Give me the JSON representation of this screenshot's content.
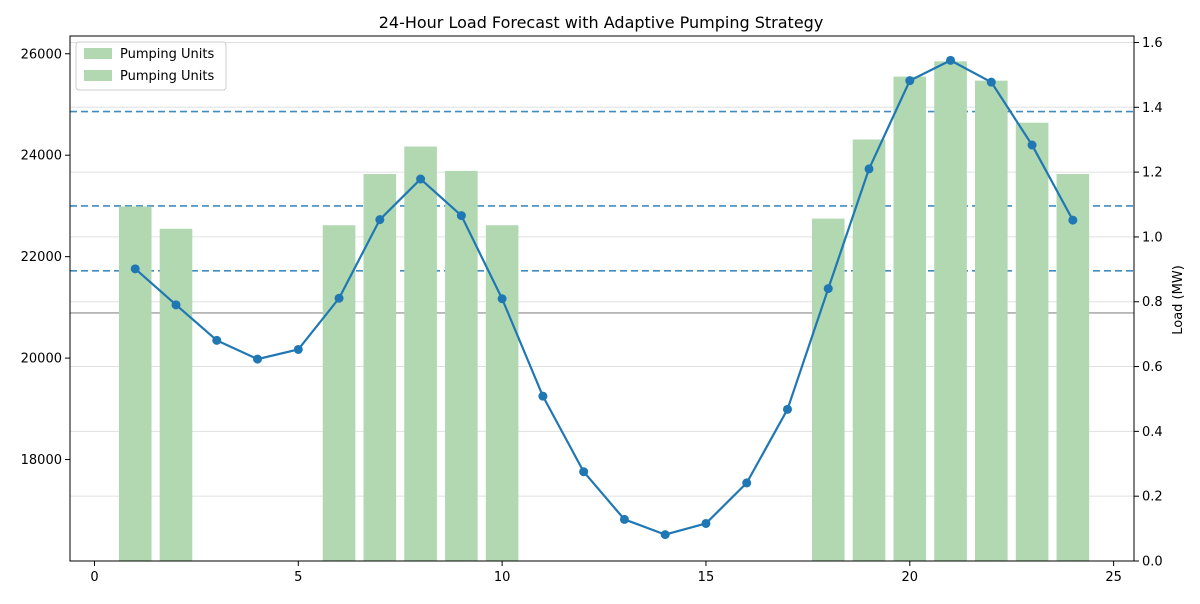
{
  "chart_data": {
    "type": "bar+line",
    "title": "24-Hour Load Forecast with Adaptive Pumping Strategy",
    "xlabel": "",
    "ylabel_left": "",
    "ylabel_right": "Load (MW)",
    "xlim": [
      -0.6,
      25.5
    ],
    "ylim_left": [
      16000,
      26350
    ],
    "ylim_right": [
      0,
      1.62
    ],
    "x_ticks": [
      0,
      5,
      10,
      15,
      20,
      25
    ],
    "y_left_ticks": [
      18000,
      20000,
      22000,
      24000,
      26000
    ],
    "y_right_ticks": [
      0.0,
      0.2,
      0.4,
      0.6,
      0.8,
      1.0,
      1.2,
      1.4,
      1.6
    ],
    "legend_position": "upper-left",
    "colors": {
      "bars": "#b2d8b2",
      "line": "#1f77b4",
      "threshold": "#1f77b4",
      "baseline": "#999999",
      "grid": "#e0e0e0"
    },
    "line_series": {
      "name": "",
      "x": [
        1,
        2,
        3,
        4,
        5,
        6,
        7,
        8,
        9,
        10,
        11,
        12,
        13,
        14,
        15,
        16,
        17,
        18,
        19,
        20,
        21,
        22,
        23,
        24
      ],
      "values": [
        21760,
        21050,
        20350,
        19980,
        20170,
        21180,
        22730,
        23530,
        22810,
        21170,
        19250,
        17760,
        16820,
        16520,
        16740,
        17540,
        18990,
        21370,
        23730,
        25470,
        25870,
        25440,
        24200,
        22720
      ]
    },
    "bar_series": {
      "name": "Pumping Units",
      "x": [
        1,
        2,
        6,
        7,
        8,
        9,
        10,
        18,
        19,
        20,
        21,
        22,
        23,
        24
      ],
      "values": [
        22990,
        22550,
        22620,
        23630,
        24170,
        23690,
        22620,
        22750,
        24310,
        25550,
        25850,
        25470,
        24640,
        23630
      ]
    },
    "legend_entries": [
      "Pumping Units",
      "Pumping Units"
    ],
    "threshold_lines": [
      24860,
      23000,
      21720
    ],
    "baseline_line": 20890
  }
}
